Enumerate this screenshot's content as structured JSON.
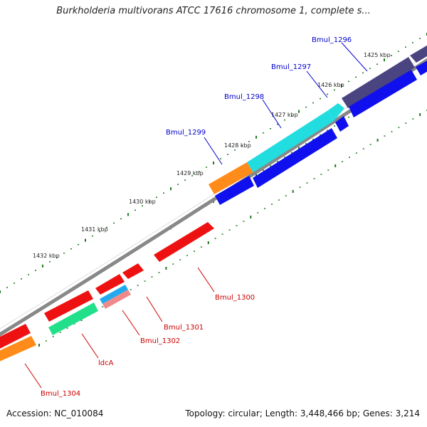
{
  "title": "Burkholderia multivorans ATCC 17616 chromosome 1, complete s...",
  "footer": {
    "accession": "Accession: NC_010084",
    "summary": "Topology: circular; Length: 3,448,466 bp; Genes: 3,214"
  },
  "colors": {
    "forward_label": "#0000cc",
    "reverse_label": "#cc0000",
    "backbone": "#888888",
    "tick": "#1f7a1f"
  },
  "scale_labels": [
    "1425 kbp",
    "1426 kbp",
    "1427 kbp",
    "1428 kbp",
    "1429 kbp",
    "1430 kbp",
    "1431 kbp",
    "1432 kbp"
  ],
  "genes": [
    {
      "name": "Bmul_1296",
      "strand": "forward",
      "color": "#4a4480"
    },
    {
      "name": "Bmul_1297",
      "strand": "forward",
      "color": "#2a2acc"
    },
    {
      "name": "Bmul_1298",
      "strand": "forward",
      "color": "#22dde0"
    },
    {
      "name": "Bmul_1299",
      "strand": "forward",
      "color": "#ff8c1a"
    },
    {
      "name": "Bmul_1300",
      "strand": "reverse",
      "color": "#ee1111"
    },
    {
      "name": "Bmul_1301",
      "strand": "reverse",
      "color": "#ee1111"
    },
    {
      "name": "Bmul_1302",
      "strand": "reverse",
      "color": "#f08a8a"
    },
    {
      "name": "ldcA",
      "strand": "reverse",
      "color": "#22e08a"
    },
    {
      "name": "Bmul_1304",
      "strand": "reverse",
      "color": "#ff8c1a"
    }
  ]
}
